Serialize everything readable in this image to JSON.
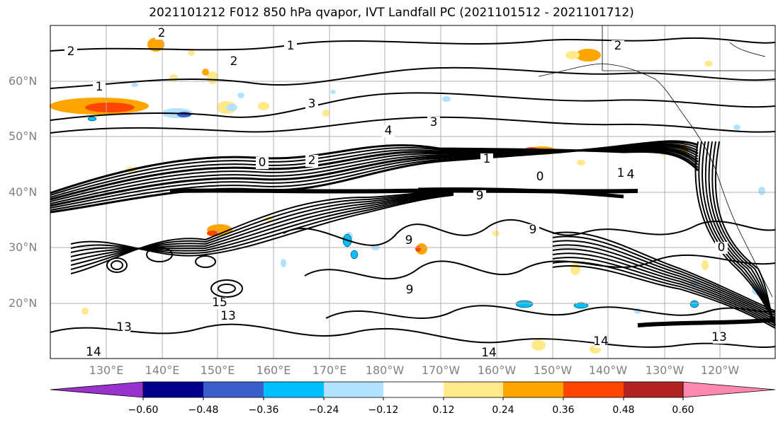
{
  "title": "2021101212 F012 850 hPa qvapor, IVT Landfall PC (2021101512 - 2021101712)",
  "map": {
    "lat_labels": [
      "60°N",
      "50°N",
      "40°N",
      "30°N",
      "20°N"
    ],
    "lon_labels": [
      "130°E",
      "140°E",
      "150°E",
      "160°E",
      "170°E",
      "180°W",
      "170°W",
      "160°W",
      "150°W",
      "140°W",
      "130°W",
      "120°W"
    ],
    "contour_labels": [
      "2",
      "1",
      "2",
      "1",
      "2",
      "3",
      "3",
      "4",
      "0",
      "2",
      "1",
      "0",
      "4",
      "9",
      "9",
      "9",
      "9",
      "14",
      "13",
      "15",
      "13",
      "14",
      "13",
      "14",
      "0",
      "1",
      "2"
    ],
    "colors": {
      "frame": "#000000",
      "grid": "#b0b0b0",
      "contour": "#000000"
    }
  },
  "colorbar": {
    "ticks": [
      "−0.60",
      "−0.48",
      "−0.36",
      "−0.24",
      "−0.12",
      "0.12",
      "0.24",
      "0.36",
      "0.48",
      "0.60"
    ],
    "colors": [
      "#9a32cd",
      "#00008b",
      "#3a5fcd",
      "#00bfff",
      "#b2e2ff",
      "#ffffff",
      "#ffe98a",
      "#ffa500",
      "#ff4500",
      "#b22222",
      "#ff88b0"
    ]
  }
}
